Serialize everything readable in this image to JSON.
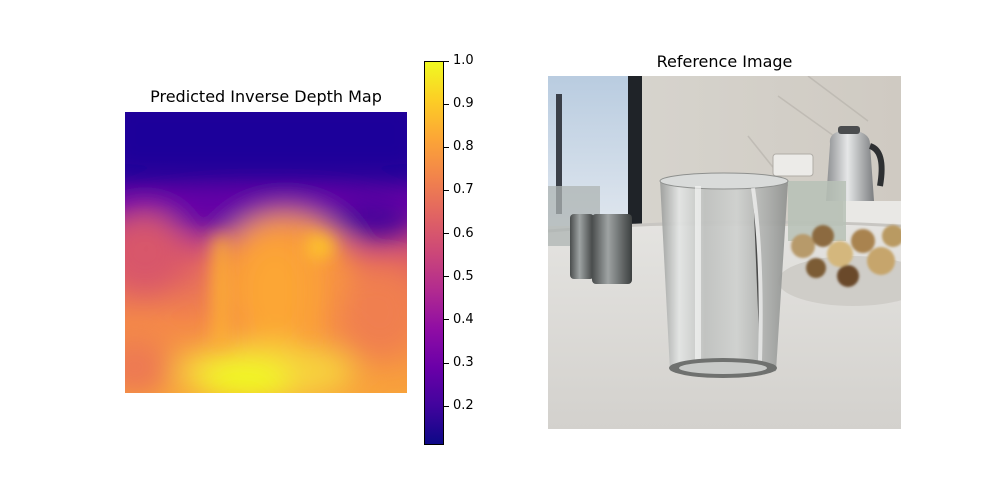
{
  "chart_data": [
    {
      "type": "heatmap",
      "title": "Predicted Inverse Depth Map",
      "colormap": "plasma",
      "colorbar": {
        "range": [
          0.11,
          1.0
        ],
        "ticks": [
          0.2,
          0.3,
          0.4,
          0.5,
          0.6,
          0.7,
          0.8,
          0.9,
          1.0
        ],
        "tick_labels": [
          "0.2",
          "0.3",
          "0.4",
          "0.5",
          "0.6",
          "0.7",
          "0.8",
          "0.9",
          "1.0"
        ]
      },
      "grid": false
    },
    {
      "type": "image",
      "title": "Reference Image"
    }
  ]
}
